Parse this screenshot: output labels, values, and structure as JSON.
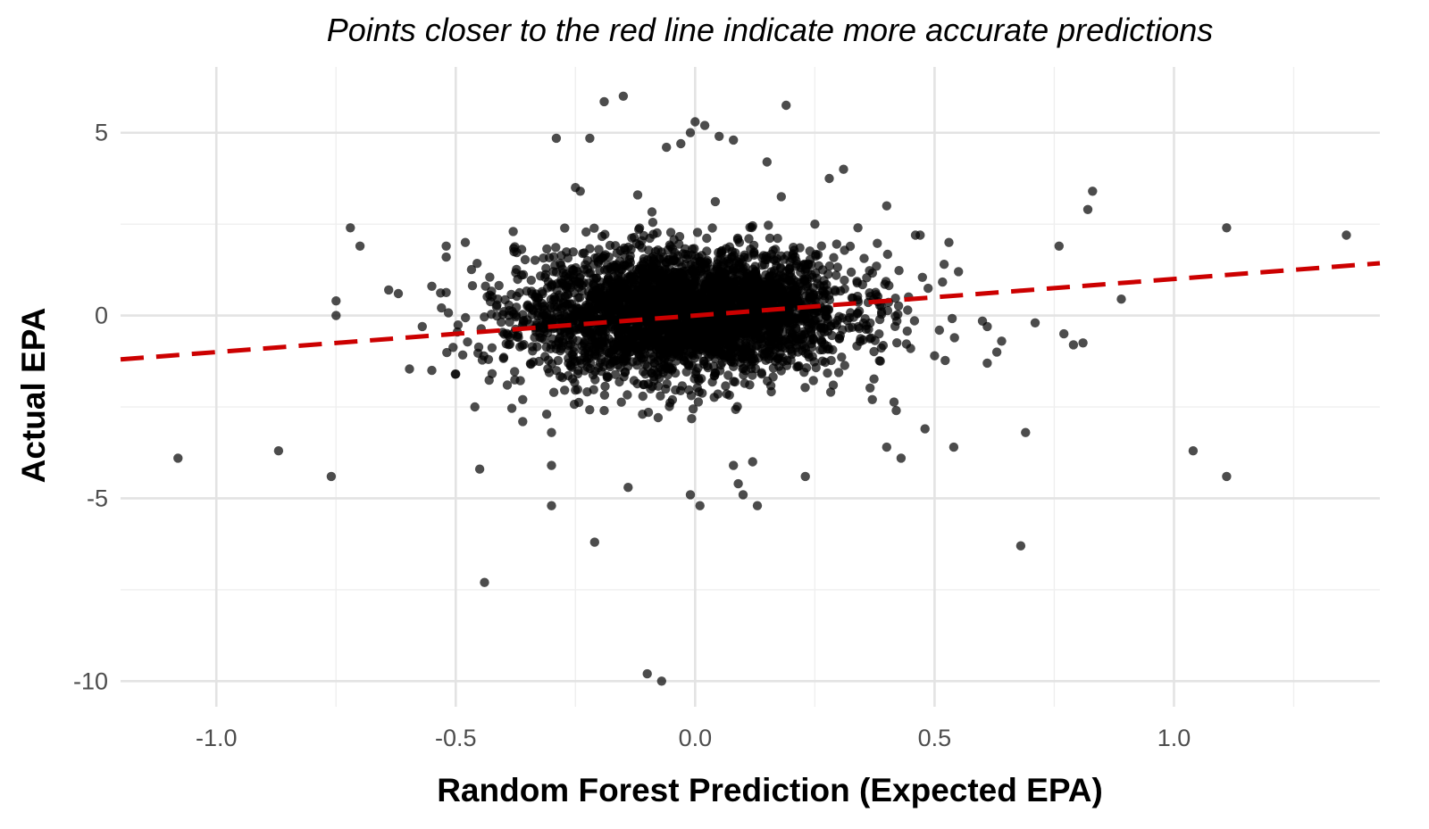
{
  "chart_data": {
    "type": "scatter",
    "subtitle": "Points closer to the red line indicate more accurate predictions",
    "xlabel": "Random Forest Prediction (Expected EPA)",
    "ylabel": "Actual EPA",
    "xlim": [
      -1.2,
      1.43
    ],
    "ylim": [
      -10.7,
      6.8
    ],
    "x_ticks": [
      -1.0,
      -0.5,
      0.0,
      0.5,
      1.0
    ],
    "x_tick_labels": [
      "-1.0",
      "-0.5",
      "0.0",
      "0.5",
      "1.0"
    ],
    "y_ticks": [
      -10,
      -5,
      0,
      5
    ],
    "y_tick_labels": [
      "-10",
      "-5",
      "0",
      "5"
    ],
    "grid": true,
    "point_color": "#000000",
    "line_color": "#cc0000",
    "reference_line": {
      "style": "dashed",
      "slope": 1.0,
      "intercept": 0.0
    },
    "outliers": [
      [
        -1.08,
        -3.9
      ],
      [
        -0.87,
        -3.7
      ],
      [
        -0.76,
        -4.4
      ],
      [
        -0.72,
        2.4
      ],
      [
        -0.7,
        1.9
      ],
      [
        -0.75,
        0.4
      ],
      [
        -0.75,
        0.0
      ],
      [
        -0.64,
        0.7
      ],
      [
        -0.55,
        0.8
      ],
      [
        -0.52,
        1.6
      ],
      [
        -0.45,
        -4.2
      ],
      [
        -0.44,
        -7.3
      ],
      [
        -0.46,
        -2.5
      ],
      [
        -0.29,
        4.85
      ],
      [
        -0.22,
        4.85
      ],
      [
        -0.19,
        5.85
      ],
      [
        -0.15,
        6.0
      ],
      [
        -0.21,
        -6.2
      ],
      [
        -0.3,
        -5.2
      ],
      [
        -0.14,
        -4.7
      ],
      [
        -0.1,
        -9.8
      ],
      [
        -0.07,
        -10.0
      ],
      [
        -0.01,
        -4.9
      ],
      [
        0.01,
        -5.2
      ],
      [
        0.09,
        -4.6
      ],
      [
        0.13,
        -5.2
      ],
      [
        0.1,
        -4.9
      ],
      [
        0.08,
        -4.1
      ],
      [
        0.12,
        -4.0
      ],
      [
        0.23,
        -4.4
      ],
      [
        0.19,
        5.75
      ],
      [
        0.0,
        5.3
      ],
      [
        0.02,
        5.2
      ],
      [
        -0.01,
        5.0
      ],
      [
        -0.03,
        4.7
      ],
      [
        0.08,
        4.8
      ],
      [
        0.05,
        4.9
      ],
      [
        -0.06,
        4.6
      ],
      [
        0.15,
        4.2
      ],
      [
        0.31,
        4.0
      ],
      [
        -0.25,
        3.5
      ],
      [
        0.43,
        -3.9
      ],
      [
        0.4,
        -3.6
      ],
      [
        0.48,
        -3.1
      ],
      [
        0.54,
        -3.6
      ],
      [
        0.68,
        -6.3
      ],
      [
        0.69,
        -3.2
      ],
      [
        1.04,
        -3.7
      ],
      [
        1.11,
        -4.4
      ],
      [
        1.11,
        2.4
      ],
      [
        1.36,
        2.2
      ],
      [
        0.83,
        3.4
      ],
      [
        0.82,
        2.9
      ],
      [
        0.76,
        1.9
      ],
      [
        0.89,
        0.45
      ],
      [
        0.71,
        -0.2
      ],
      [
        0.77,
        -0.5
      ],
      [
        0.79,
        -0.8
      ],
      [
        0.81,
        -0.75
      ],
      [
        0.61,
        -1.3
      ],
      [
        0.63,
        -1.0
      ],
      [
        0.64,
        -0.7
      ],
      [
        0.6,
        -0.15
      ],
      [
        0.61,
        -0.3
      ],
      [
        0.52,
        1.4
      ],
      [
        0.55,
        1.2
      ],
      [
        0.53,
        2.0
      ],
      [
        0.46,
        2.2
      ],
      [
        0.4,
        3.0
      ],
      [
        -0.38,
        2.3
      ],
      [
        -0.52,
        1.9
      ],
      [
        -0.48,
        2.0
      ],
      [
        -0.62,
        0.6
      ],
      [
        -0.57,
        -0.3
      ],
      [
        -0.55,
        -1.5
      ],
      [
        -0.5,
        -1.6
      ],
      [
        -0.36,
        -2.3
      ],
      [
        -0.36,
        -2.9
      ],
      [
        -0.3,
        -3.2
      ],
      [
        -0.3,
        -4.1
      ],
      [
        -0.31,
        -2.7
      ],
      [
        -0.19,
        -2.6
      ],
      [
        -0.11,
        -2.7
      ],
      [
        0.28,
        3.75
      ],
      [
        0.25,
        2.5
      ],
      [
        0.18,
        3.25
      ],
      [
        -0.24,
        3.4
      ],
      [
        -0.12,
        3.3
      ],
      [
        0.37,
        -2.3
      ],
      [
        0.42,
        -2.6
      ],
      [
        0.47,
        2.2
      ],
      [
        0.5,
        -1.1
      ],
      [
        0.45,
        -0.9
      ],
      [
        0.51,
        -0.4
      ],
      [
        0.34,
        2.4
      ]
    ],
    "core_cloud": {
      "n": 3500,
      "x_center": -0.02,
      "x_sd": 0.17,
      "y_center": 0.05,
      "y_sd": 0.85,
      "x_range": [
        -0.6,
        0.58
      ]
    }
  }
}
